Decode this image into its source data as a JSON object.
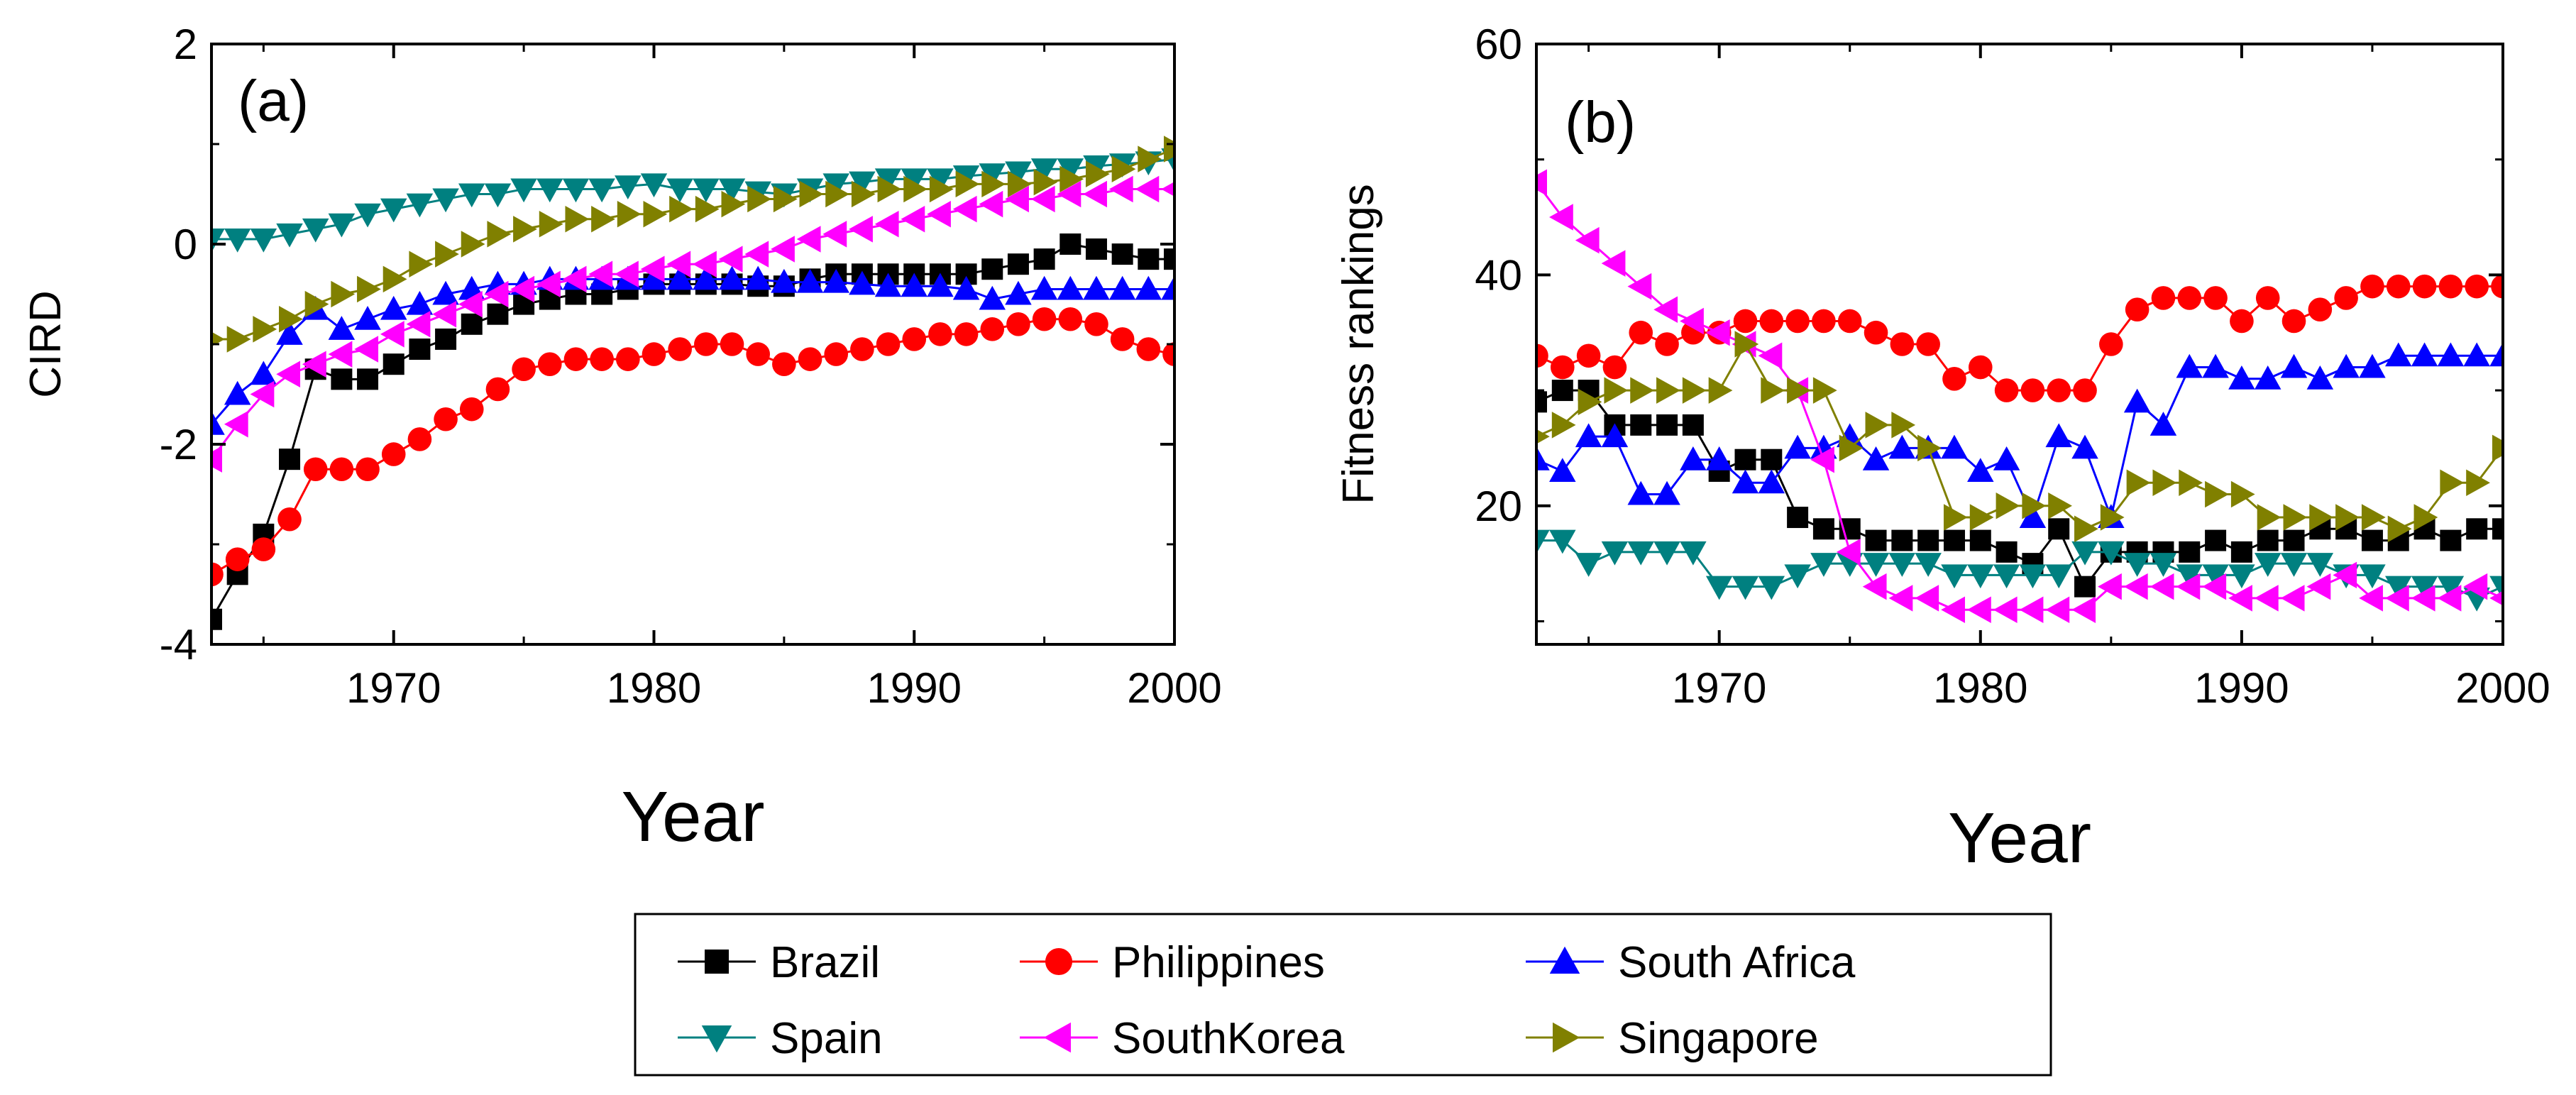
{
  "chart_data": [
    {
      "type": "line",
      "panel_label": "(a)",
      "xlabel": "Year",
      "ylabel": "CIRD",
      "xlim": [
        1963,
        2000
      ],
      "ylim": [
        -4,
        2
      ],
      "xticks": [
        1970,
        1980,
        1990,
        2000
      ],
      "yticks": [
        -4,
        -2,
        0,
        2
      ],
      "x": [
        1963,
        1964,
        1965,
        1966,
        1967,
        1968,
        1969,
        1970,
        1971,
        1972,
        1973,
        1974,
        1975,
        1976,
        1977,
        1978,
        1979,
        1980,
        1981,
        1982,
        1983,
        1984,
        1985,
        1986,
        1987,
        1988,
        1989,
        1990,
        1991,
        1992,
        1993,
        1994,
        1995,
        1996,
        1997,
        1998,
        1999,
        2000
      ],
      "series": [
        {
          "name": "Brazil",
          "color": "#000000",
          "marker": "square",
          "values": [
            -3.75,
            -3.3,
            -2.9,
            -2.15,
            -1.25,
            -1.35,
            -1.35,
            -1.2,
            -1.05,
            -0.95,
            -0.8,
            -0.7,
            -0.6,
            -0.55,
            -0.5,
            -0.5,
            -0.45,
            -0.4,
            -0.4,
            -0.4,
            -0.4,
            -0.42,
            -0.42,
            -0.35,
            -0.3,
            -0.3,
            -0.3,
            -0.3,
            -0.3,
            -0.3,
            -0.25,
            -0.2,
            -0.15,
            0.0,
            -0.05,
            -0.1,
            -0.15,
            -0.15
          ]
        },
        {
          "name": "Philippines",
          "color": "#ff0000",
          "marker": "circle",
          "values": [
            -3.3,
            -3.15,
            -3.05,
            -2.75,
            -2.25,
            -2.25,
            -2.25,
            -2.1,
            -1.95,
            -1.75,
            -1.65,
            -1.45,
            -1.25,
            -1.2,
            -1.15,
            -1.15,
            -1.15,
            -1.1,
            -1.05,
            -1.0,
            -1.0,
            -1.1,
            -1.2,
            -1.15,
            -1.1,
            -1.05,
            -1.0,
            -0.95,
            -0.9,
            -0.9,
            -0.85,
            -0.8,
            -0.75,
            -0.75,
            -0.8,
            -0.95,
            -1.05,
            -1.1
          ]
        },
        {
          "name": "South Africa",
          "color": "#0000ff",
          "marker": "triangle-up",
          "values": [
            -1.8,
            -1.5,
            -1.3,
            -0.9,
            -0.65,
            -0.85,
            -0.75,
            -0.65,
            -0.6,
            -0.5,
            -0.45,
            -0.4,
            -0.4,
            -0.35,
            -0.35,
            -0.35,
            -0.35,
            -0.35,
            -0.35,
            -0.35,
            -0.35,
            -0.35,
            -0.38,
            -0.38,
            -0.38,
            -0.4,
            -0.42,
            -0.42,
            -0.42,
            -0.45,
            -0.55,
            -0.5,
            -0.45,
            -0.45,
            -0.45,
            -0.45,
            -0.45,
            -0.45
          ]
        },
        {
          "name": "Spain",
          "color": "#008080",
          "marker": "triangle-down",
          "values": [
            0.05,
            0.05,
            0.05,
            0.1,
            0.15,
            0.2,
            0.3,
            0.35,
            0.4,
            0.45,
            0.5,
            0.5,
            0.55,
            0.55,
            0.55,
            0.55,
            0.58,
            0.6,
            0.55,
            0.55,
            0.55,
            0.52,
            0.5,
            0.55,
            0.6,
            0.62,
            0.65,
            0.65,
            0.65,
            0.68,
            0.7,
            0.72,
            0.75,
            0.75,
            0.78,
            0.8,
            0.82,
            0.85
          ]
        },
        {
          "name": "SouthKorea",
          "color": "#ff00ff",
          "marker": "triangle-left",
          "values": [
            -2.15,
            -1.8,
            -1.5,
            -1.3,
            -1.2,
            -1.1,
            -1.05,
            -0.9,
            -0.8,
            -0.7,
            -0.6,
            -0.5,
            -0.45,
            -0.4,
            -0.35,
            -0.3,
            -0.3,
            -0.25,
            -0.2,
            -0.2,
            -0.15,
            -0.1,
            -0.05,
            0.05,
            0.1,
            0.15,
            0.2,
            0.25,
            0.3,
            0.35,
            0.4,
            0.45,
            0.45,
            0.5,
            0.5,
            0.55,
            0.55,
            0.55
          ]
        },
        {
          "name": "Singapore",
          "color": "#808000",
          "marker": "triangle-right",
          "values": [
            -0.95,
            -0.95,
            -0.85,
            -0.75,
            -0.6,
            -0.5,
            -0.45,
            -0.35,
            -0.2,
            -0.1,
            0.0,
            0.1,
            0.15,
            0.2,
            0.25,
            0.25,
            0.3,
            0.3,
            0.35,
            0.35,
            0.4,
            0.45,
            0.45,
            0.5,
            0.5,
            0.5,
            0.55,
            0.55,
            0.55,
            0.6,
            0.6,
            0.6,
            0.62,
            0.65,
            0.7,
            0.75,
            0.85,
            0.95
          ]
        }
      ]
    },
    {
      "type": "line",
      "panel_label": "(b)",
      "xlabel": "Year",
      "ylabel": "Fitness rankings",
      "xlim": [
        1963,
        2000
      ],
      "ylim": [
        8,
        60
      ],
      "xticks": [
        1970,
        1980,
        1990,
        2000
      ],
      "yticks": [
        20,
        40,
        60
      ],
      "x": [
        1963,
        1964,
        1965,
        1966,
        1967,
        1968,
        1969,
        1970,
        1971,
        1972,
        1973,
        1974,
        1975,
        1976,
        1977,
        1978,
        1979,
        1980,
        1981,
        1982,
        1983,
        1984,
        1985,
        1986,
        1987,
        1988,
        1989,
        1990,
        1991,
        1992,
        1993,
        1994,
        1995,
        1996,
        1997,
        1998,
        1999,
        2000
      ],
      "series": [
        {
          "name": "Brazil",
          "color": "#000000",
          "marker": "square",
          "values": [
            29,
            30,
            30,
            27,
            27,
            27,
            27,
            23,
            24,
            24,
            19,
            18,
            18,
            17,
            17,
            17,
            17,
            17,
            16,
            15,
            18,
            13,
            16,
            16,
            16,
            16,
            17,
            16,
            17,
            17,
            18,
            18,
            17,
            17,
            18,
            17,
            18,
            18
          ]
        },
        {
          "name": "Philippines",
          "color": "#ff0000",
          "marker": "circle",
          "values": [
            33,
            32,
            33,
            32,
            35,
            34,
            35,
            35,
            36,
            36,
            36,
            36,
            36,
            35,
            34,
            34,
            31,
            32,
            30,
            30,
            30,
            30,
            34,
            37,
            38,
            38,
            38,
            36,
            38,
            36,
            37,
            38,
            39,
            39,
            39,
            39,
            39,
            39
          ]
        },
        {
          "name": "South Africa",
          "color": "#0000ff",
          "marker": "triangle-up",
          "values": [
            24,
            23,
            26,
            26,
            21,
            21,
            24,
            24,
            22,
            22,
            25,
            25,
            26,
            24,
            25,
            25,
            25,
            23,
            24,
            19,
            26,
            25,
            19,
            29,
            27,
            32,
            32,
            31,
            31,
            32,
            31,
            32,
            32,
            33,
            33,
            33,
            33,
            33
          ]
        },
        {
          "name": "Spain",
          "color": "#008080",
          "marker": "triangle-down",
          "values": [
            17,
            17,
            15,
            16,
            16,
            16,
            16,
            13,
            13,
            13,
            14,
            15,
            15,
            15,
            15,
            15,
            14,
            14,
            14,
            14,
            14,
            16,
            16,
            15,
            15,
            14,
            14,
            14,
            15,
            15,
            15,
            14,
            14,
            13,
            13,
            13,
            12,
            13
          ]
        },
        {
          "name": "SouthKorea",
          "color": "#ff00ff",
          "marker": "triangle-left",
          "values": [
            48,
            45,
            43,
            41,
            39,
            37,
            36,
            35,
            34,
            33,
            30,
            24,
            16,
            13,
            12,
            12,
            11,
            11,
            11,
            11,
            11,
            11,
            13,
            13,
            13,
            13,
            13,
            12,
            12,
            12,
            13,
            14,
            12,
            12,
            12,
            12,
            13,
            12
          ]
        },
        {
          "name": "Singapore",
          "color": "#808000",
          "marker": "triangle-right",
          "values": [
            26,
            27,
            29,
            30,
            30,
            30,
            30,
            30,
            34,
            30,
            30,
            30,
            25,
            27,
            27,
            25,
            19,
            19,
            20,
            20,
            20,
            18,
            19,
            22,
            22,
            22,
            21,
            21,
            19,
            19,
            19,
            19,
            19,
            18,
            19,
            22,
            22,
            25
          ]
        }
      ]
    }
  ],
  "legend": {
    "entries": [
      "Brazil",
      "Philippines",
      "South Africa",
      "Spain",
      "SouthKorea",
      "Singapore"
    ]
  }
}
